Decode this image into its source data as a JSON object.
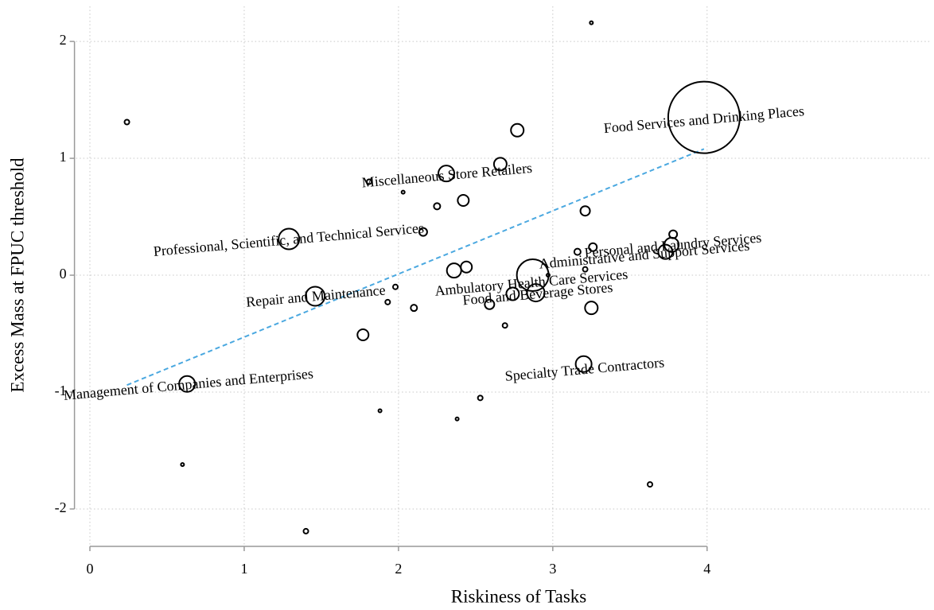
{
  "chart_data": {
    "type": "scatter",
    "x_label": "Riskiness of Tasks",
    "y_label": "Excess Mass at FPUC threshold",
    "x": [
      0.24,
      3.25,
      3.98,
      2.77,
      2.66,
      2.31,
      1.81,
      2.03,
      2.42,
      2.25,
      3.21,
      2.16,
      1.29,
      3.78,
      3.26,
      3.16,
      3.73,
      3.77,
      2.44,
      2.36,
      2.87,
      3.21,
      2.97,
      1.46,
      1.98,
      1.93,
      2.1,
      2.59,
      2.74,
      2.89,
      3.25,
      1.77,
      2.69,
      3.2,
      0.63,
      2.53,
      1.88,
      2.38,
      0.6,
      3.63,
      1.4
    ],
    "y": [
      1.31,
      2.16,
      1.35,
      1.24,
      0.95,
      0.87,
      0.8,
      0.71,
      0.64,
      0.59,
      0.55,
      0.37,
      0.31,
      0.35,
      0.24,
      0.2,
      0.2,
      0.26,
      0.07,
      0.04,
      0.0,
      0.05,
      0.0,
      -0.18,
      -0.1,
      -0.23,
      -0.28,
      -0.25,
      -0.16,
      -0.15,
      -0.28,
      -0.51,
      -0.43,
      -0.76,
      -0.93,
      -1.05,
      -1.16,
      -1.23,
      -1.62,
      -1.79,
      -2.19
    ],
    "sizes": [
      3,
      2,
      45,
      8,
      8,
      10,
      3,
      2,
      7,
      4,
      6,
      5,
      13,
      5,
      5,
      4,
      9,
      9,
      7,
      9,
      20,
      3,
      2,
      12,
      3,
      3,
      4,
      6,
      8,
      11,
      8,
      7,
      3,
      10,
      10,
      3,
      2,
      2,
      2,
      3,
      3
    ],
    "marker_color": "#000000",
    "fit_line": {
      "x": [
        0.24,
        3.98
      ],
      "y": [
        -0.94,
        1.08
      ],
      "color": "#4aa8e0"
    },
    "annotations": [
      "Food Services and Drinking Places",
      "Miscellaneous Store Retailers",
      "Professional, Scientific, and Technical Services",
      "Personal and Laundry Services",
      "Administrative and Support Services",
      "Ambulatory Health Care Services",
      "Repair and Maintenance",
      "Food and Beverage Stores",
      "Specialty Trade Contractors",
      "Management of Companies and Enterprises"
    ],
    "xlim": [
      -0.1,
      5.45
    ],
    "ylim": [
      -2.32,
      2.3
    ],
    "xticks": [
      0,
      1,
      2,
      3,
      4
    ],
    "yticks": [
      -2,
      -1,
      0,
      1,
      2
    ],
    "grid": true
  }
}
